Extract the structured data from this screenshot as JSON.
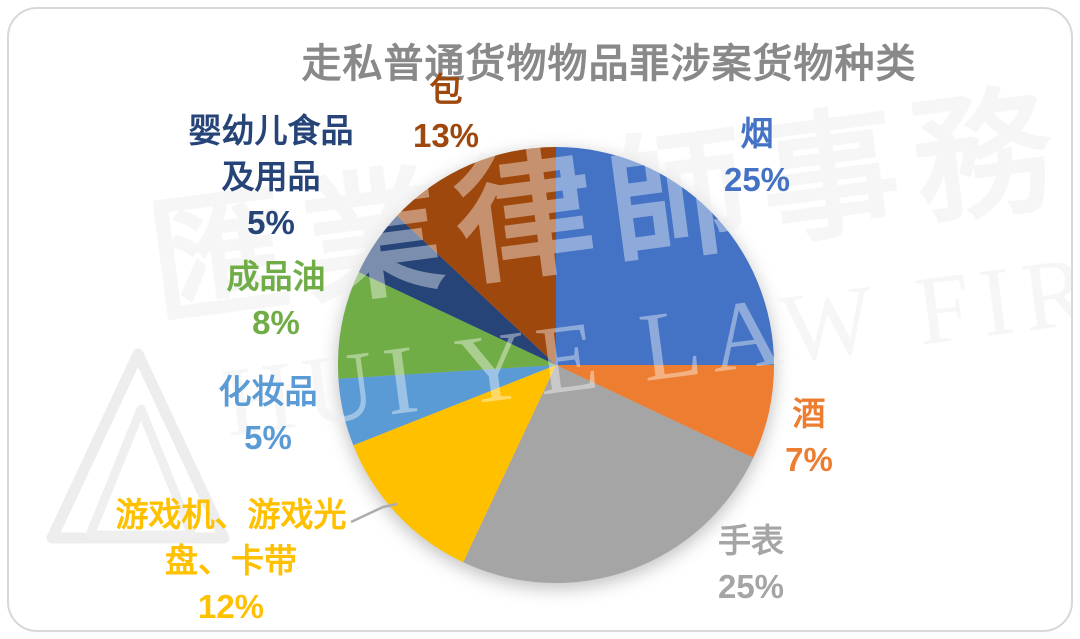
{
  "title": "走私普通货物物品罪涉案货物种类",
  "watermark": {
    "cn": "匯業律師事務所",
    "en": "HUI YE LAW FIRM"
  },
  "chart_data": {
    "type": "pie",
    "title": "走私普通货物物品罪涉案货物种类",
    "unit": "%",
    "start_angle_deg": 0,
    "direction": "clockwise",
    "legend": "none",
    "data_labels": "category name and percentage outside slices, text colored to match slice",
    "slices": [
      {
        "label": "烟",
        "value": 25,
        "color": "#4472C4"
      },
      {
        "label": "酒",
        "value": 7,
        "color": "#ED7D31"
      },
      {
        "label": "手表",
        "value": 25,
        "color": "#A5A5A5"
      },
      {
        "label": "游戏机、游戏光盘、卡带",
        "value": 12,
        "color": "#FFC000"
      },
      {
        "label": "化妆品",
        "value": 5,
        "color": "#5B9BD5"
      },
      {
        "label": "成品油",
        "value": 8,
        "color": "#70AD47"
      },
      {
        "label": "婴幼儿食品及用品",
        "value": 5,
        "color": "#264478"
      },
      {
        "label": "包",
        "value": 13,
        "color": "#9E480E"
      }
    ]
  },
  "callouts": [
    {
      "slice": 0,
      "lines": [
        "烟",
        "25%"
      ]
    },
    {
      "slice": 1,
      "lines": [
        "酒",
        "7%"
      ]
    },
    {
      "slice": 2,
      "lines": [
        "手表",
        "25%"
      ]
    },
    {
      "slice": 3,
      "lines": [
        "游戏机、游戏光",
        "盘、卡带",
        "12%"
      ]
    },
    {
      "slice": 4,
      "lines": [
        "化妆品",
        "5%"
      ]
    },
    {
      "slice": 5,
      "lines": [
        "成品油",
        "8%"
      ]
    },
    {
      "slice": 6,
      "lines": [
        "婴幼儿食品",
        "及用品",
        "5%"
      ]
    },
    {
      "slice": 7,
      "lines": [
        "包",
        "13%"
      ]
    }
  ]
}
